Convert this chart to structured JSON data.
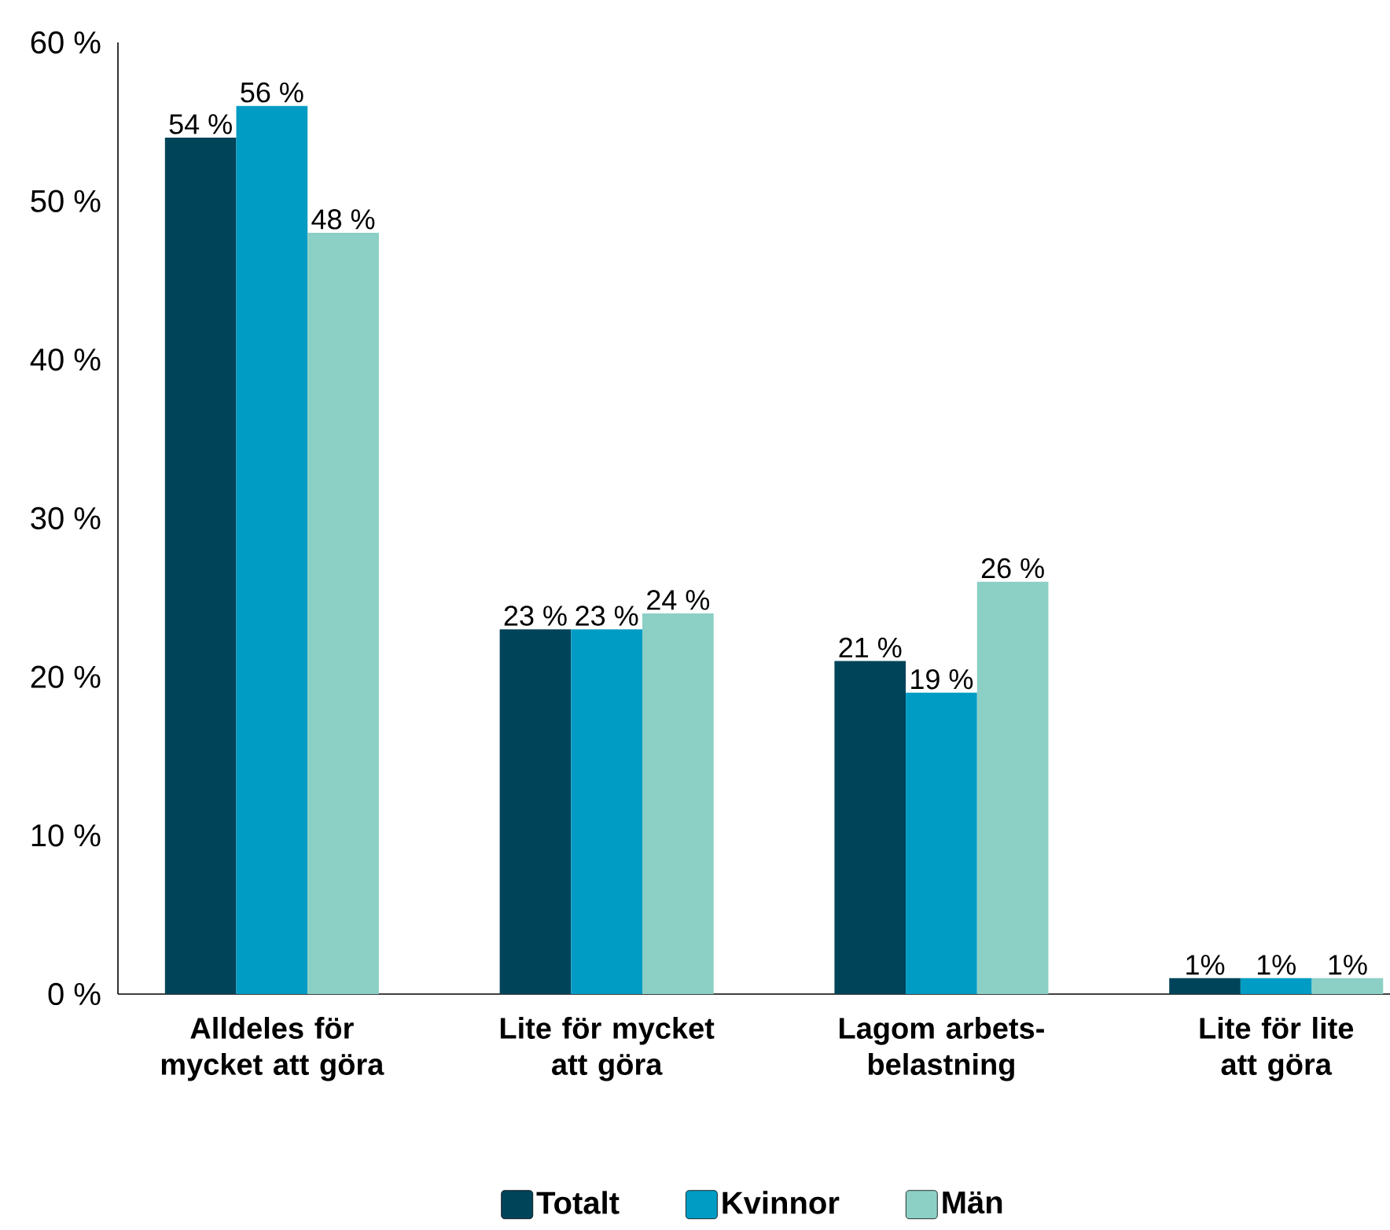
{
  "chart_data": {
    "type": "bar",
    "categories": [
      "Alldeles för mycket att göra",
      "Lite för mycket att göra",
      "Lagom arbets-belastning",
      "Lite för lite att göra"
    ],
    "series": [
      {
        "name": "Totalt",
        "color": "#00445a",
        "values": [
          54,
          23,
          21,
          1
        ],
        "value_labels": [
          "54 %",
          "23 %",
          "21 %",
          "1%"
        ]
      },
      {
        "name": "Kvinnor",
        "color": "#009cc4",
        "values": [
          56,
          23,
          19,
          1
        ],
        "value_labels": [
          "56 %",
          "23 %",
          "19 %",
          "1%"
        ]
      },
      {
        "name": "Män",
        "color": "#8ccfc5",
        "values": [
          48,
          24,
          26,
          1
        ],
        "value_labels": [
          "48 %",
          "24 %",
          "26 %",
          "1%"
        ]
      }
    ],
    "ylim": [
      0,
      60
    ],
    "yticks": [
      {
        "value": 0,
        "label": "0 %"
      },
      {
        "value": 10,
        "label": "10 %"
      },
      {
        "value": 20,
        "label": "20 %"
      },
      {
        "value": 30,
        "label": "30 %"
      },
      {
        "value": 40,
        "label": "40 %"
      },
      {
        "value": 50,
        "label": "50 %"
      },
      {
        "value": 60,
        "label": "60 %"
      }
    ],
    "grid": false,
    "legend": "bottom"
  }
}
